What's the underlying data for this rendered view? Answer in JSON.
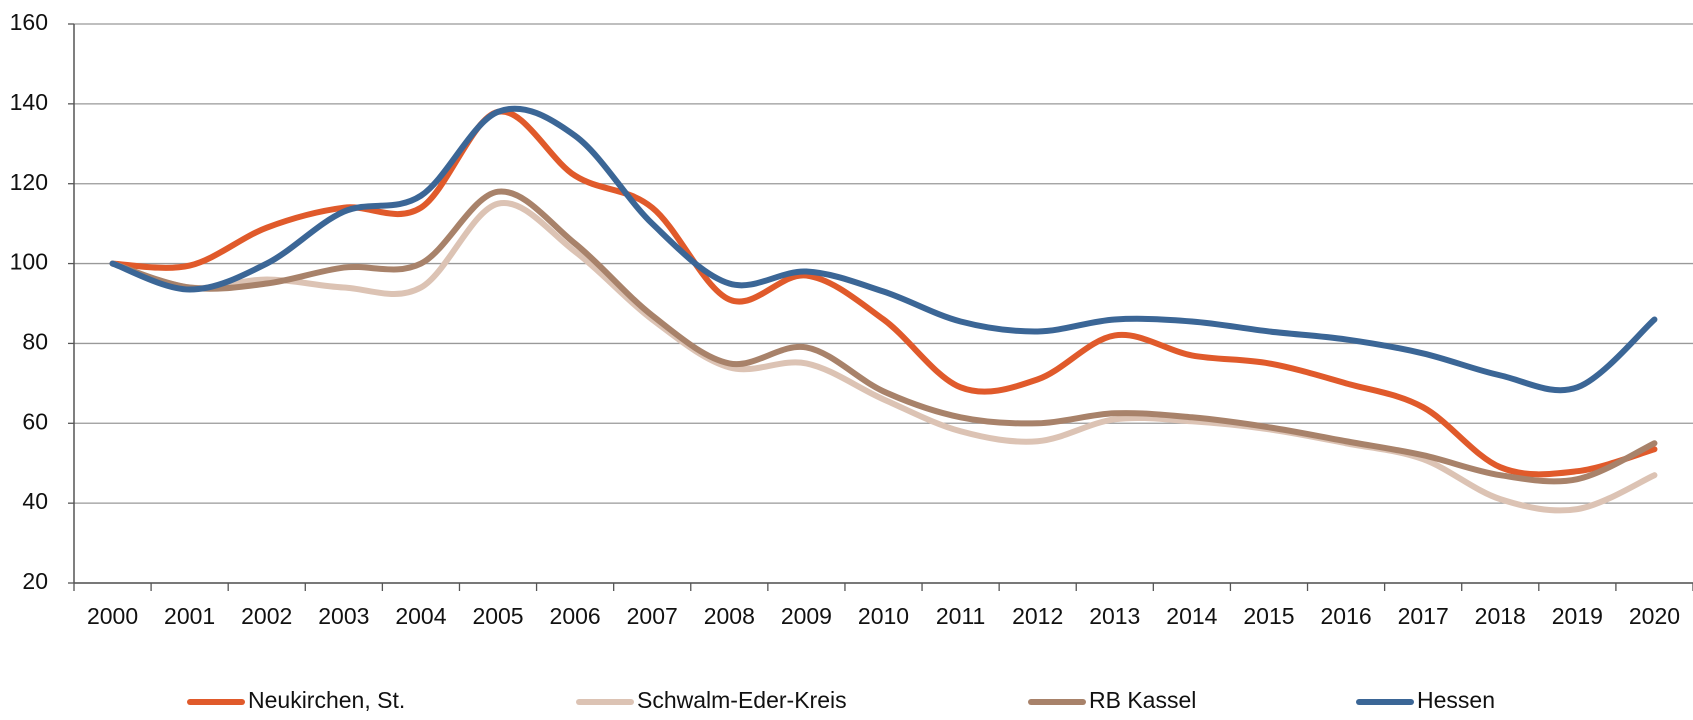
{
  "chart_data": {
    "type": "line",
    "categories": [
      "2000",
      "2001",
      "2002",
      "2003",
      "2004",
      "2005",
      "2006",
      "2007",
      "2008",
      "2009",
      "2010",
      "2011",
      "2012",
      "2013",
      "2014",
      "2015",
      "2016",
      "2017",
      "2018",
      "2019",
      "2020"
    ],
    "series": [
      {
        "name": "Neukirchen, St.",
        "color": "#e05a2b",
        "values": [
          100,
          99.5,
          109,
          114,
          114,
          138,
          122,
          114,
          91,
          97,
          86,
          69,
          71,
          82,
          77,
          75,
          70,
          64,
          49,
          48,
          53.5
        ]
      },
      {
        "name": "Schwalm-Eder-Kreis",
        "color": "#dcc3b4",
        "values": [
          100,
          94,
          96,
          94,
          94,
          115,
          103,
          86,
          74,
          75,
          66,
          58,
          55.5,
          61,
          60.5,
          58.5,
          55,
          51,
          41,
          38.5,
          47
        ]
      },
      {
        "name": "RB Kassel",
        "color": "#a8826a",
        "values": [
          100,
          94,
          95,
          99,
          100,
          118,
          105,
          87,
          75,
          79,
          68,
          61.5,
          60,
          62.5,
          61.5,
          59,
          55.5,
          52,
          47,
          46,
          55
        ]
      },
      {
        "name": "Hessen",
        "color": "#3b6696",
        "values": [
          100,
          93.5,
          100,
          113,
          117,
          138,
          132,
          110,
          95,
          98,
          93,
          85.5,
          83,
          86,
          85.5,
          83,
          81,
          77.5,
          72,
          69,
          86
        ]
      }
    ],
    "ylim": [
      20,
      160
    ],
    "yticks": [
      20,
      40,
      60,
      80,
      100,
      120,
      140,
      160
    ],
    "grid": true,
    "legend": "bottom"
  }
}
